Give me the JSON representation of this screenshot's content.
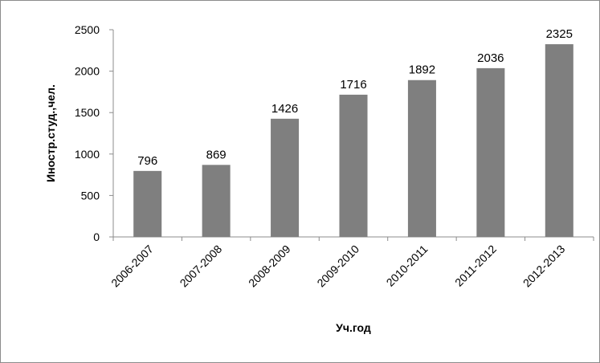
{
  "chart_data": {
    "type": "bar",
    "title": "",
    "xlabel": "Уч.год",
    "ylabel": "Иностр.студ.,чел.",
    "categories": [
      "2006-2007",
      "2007-2008",
      "2008-2009",
      "2009-2010",
      "2010-2011",
      "2011-2012",
      "2012-2013"
    ],
    "values": [
      796,
      869,
      1426,
      1716,
      1892,
      2036,
      2325
    ],
    "data_labels": [
      "796",
      "869",
      "1426",
      "1716",
      "1892",
      "2036",
      "2325"
    ],
    "ylim": [
      0,
      2500
    ],
    "yticks": [
      0,
      500,
      1000,
      1500,
      2000,
      2500
    ],
    "ytick_labels": [
      "0",
      "500",
      "1000",
      "1500",
      "2000",
      "2500"
    ],
    "grid": false,
    "legend": "none",
    "bar_color": "#7f7f7f",
    "axis_color": "#8c8c8c"
  }
}
